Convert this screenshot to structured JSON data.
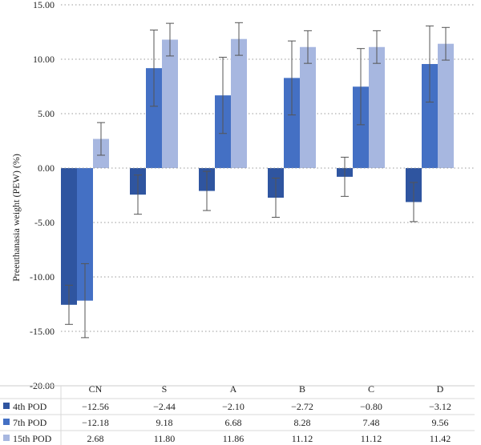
{
  "chart_data": {
    "type": "bar",
    "ylabel": "Preeuthanasia weight (PEW) (%)",
    "ylim": [
      -20,
      15
    ],
    "yticks": [
      "15.00",
      "10.00",
      "5.00",
      "0.00",
      "-5.00",
      "-10.00",
      "-15.00",
      "-20.00"
    ],
    "ytick_values": [
      15,
      10,
      5,
      0,
      -5,
      -10,
      -15,
      -20
    ],
    "grid": "horizontal dotted",
    "legend_placement": "bottom-left table",
    "categories": [
      "CN",
      "S",
      "A",
      "B",
      "C",
      "D"
    ],
    "series": [
      {
        "name": "4th POD",
        "color": "#2f55a0",
        "values": [
          -12.56,
          -2.44,
          -2.1,
          -2.72,
          -0.8,
          -3.12
        ],
        "labels": [
          "−12.56",
          "−2.44",
          "−2.10",
          "−2.72",
          "−0.80",
          "−3.12"
        ],
        "errors": [
          1.8,
          1.8,
          1.8,
          1.8,
          1.8,
          1.8
        ]
      },
      {
        "name": "7th POD",
        "color": "#4470c4",
        "values": [
          -12.18,
          9.18,
          6.68,
          8.28,
          7.48,
          9.56
        ],
        "labels": [
          "−12.18",
          "9.18",
          "6.68",
          "8.28",
          "7.48",
          "9.56"
        ],
        "errors": [
          3.4,
          3.5,
          3.5,
          3.4,
          3.5,
          3.5
        ]
      },
      {
        "name": "15th POD",
        "color": "#a7b7e0",
        "values": [
          2.68,
          11.8,
          11.86,
          11.12,
          11.12,
          11.42
        ],
        "labels": [
          "2.68",
          "11.80",
          "11.86",
          "11.12",
          "11.12",
          "11.42"
        ],
        "errors": [
          1.5,
          1.5,
          1.5,
          1.5,
          1.5,
          1.5
        ]
      }
    ]
  }
}
